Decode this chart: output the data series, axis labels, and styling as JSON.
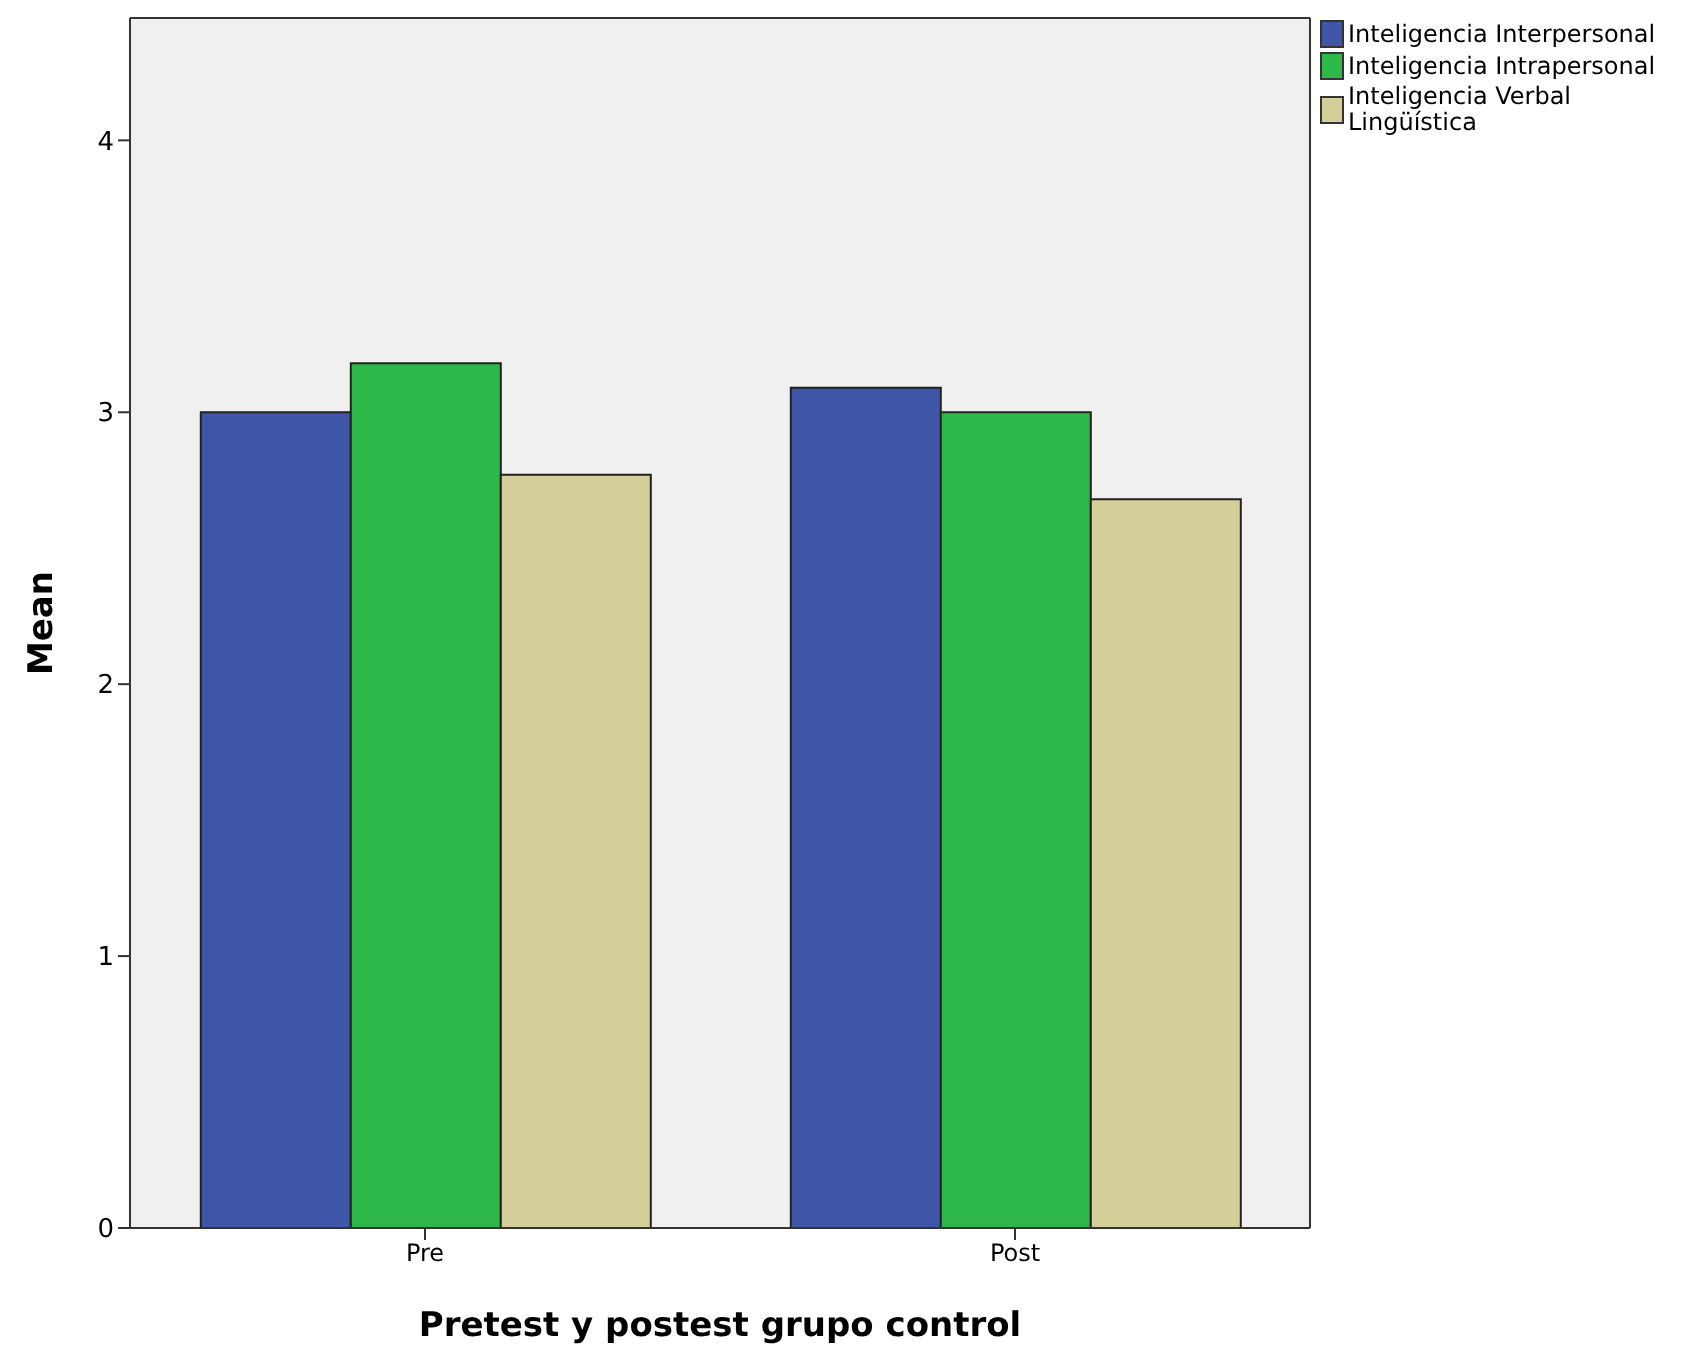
{
  "chart_data": {
    "type": "bar",
    "xlabel": "Pretest y postest grupo control",
    "ylabel": "Mean",
    "categories": [
      "Pre",
      "Post"
    ],
    "series": [
      {
        "name": "Inteligencia Interpersonal",
        "color": "#3f56a8",
        "values": [
          3.0,
          3.09
        ]
      },
      {
        "name": "Inteligencia Intrapersonal",
        "color": "#2eb84a",
        "values": [
          3.18,
          3.0
        ]
      },
      {
        "name": "Inteligencia Verbal Lingüística",
        "color": "#d4cf98",
        "values": [
          2.77,
          2.68
        ]
      }
    ],
    "ylim": [
      0,
      4.45
    ],
    "yticks": [
      0,
      1,
      2,
      3,
      4
    ],
    "grid": false,
    "legend": "top right"
  }
}
